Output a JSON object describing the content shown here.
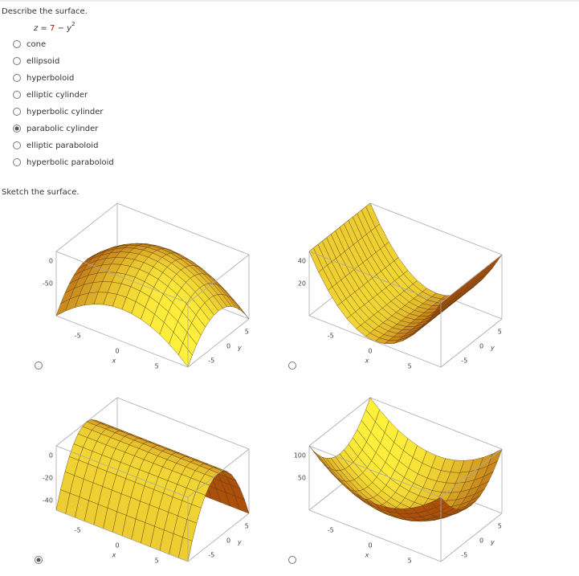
{
  "question": {
    "prompt": "Describe the surface.",
    "equation": {
      "lhs": "z =",
      "constant": "7",
      "operator": "−",
      "variable": "y",
      "exponent": "2"
    },
    "options": [
      "cone",
      "ellipsoid",
      "hyperboloid",
      "elliptic cylinder",
      "hyperbolic cylinder",
      "parabolic cylinder",
      "elliptic paraboloid",
      "hyperbolic paraboloid"
    ],
    "selected": 5
  },
  "sketch": {
    "prompt": "Sketch the surface.",
    "selected": 2,
    "plots": [
      {
        "z_ticks": [
          "0",
          "-50"
        ],
        "x_ticks": [
          "-5",
          "0",
          "5"
        ],
        "x_label": "x",
        "y_ticks": [
          "5",
          "0",
          "-5"
        ],
        "y_label": "y"
      },
      {
        "z_ticks": [
          "40",
          "20"
        ],
        "x_ticks": [
          "-5",
          "0",
          "5"
        ],
        "x_label": "x",
        "y_ticks": [
          "5",
          "0",
          "-5"
        ],
        "y_label": "y"
      },
      {
        "z_ticks": [
          "0",
          "-20",
          "-40"
        ],
        "x_ticks": [
          "-5",
          "0",
          "5"
        ],
        "x_label": "x",
        "y_ticks": [
          "5",
          "0",
          "-5"
        ],
        "y_label": "y"
      },
      {
        "z_ticks": [
          "100",
          "50"
        ],
        "x_ticks": [
          "-5",
          "0",
          "5"
        ],
        "x_label": "x",
        "y_ticks": [
          "5",
          "0",
          "-5"
        ],
        "y_label": "y"
      }
    ]
  }
}
